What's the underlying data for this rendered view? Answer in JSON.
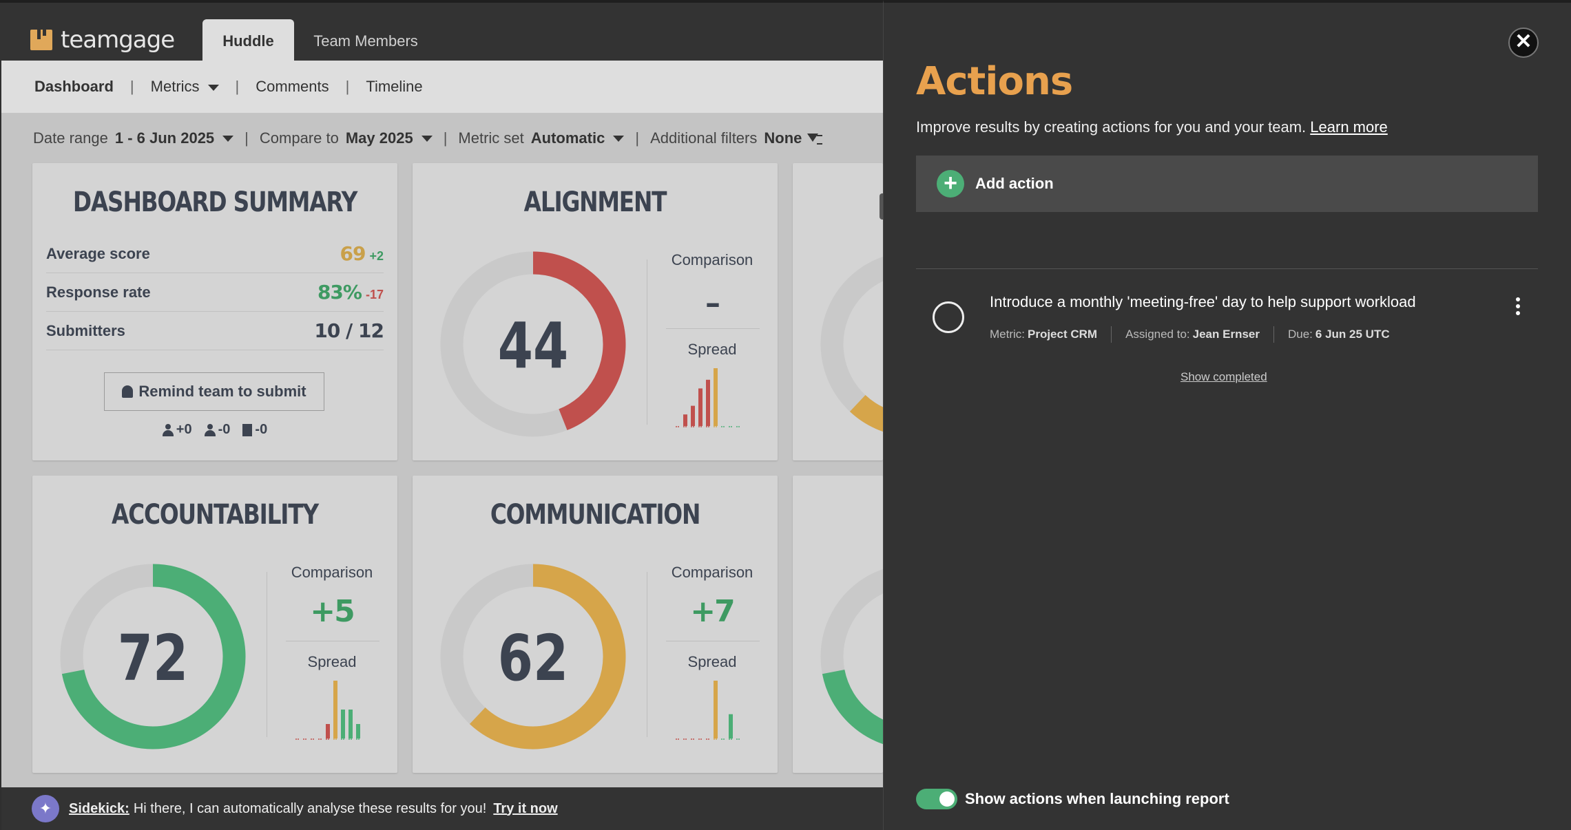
{
  "brand": {
    "name": "teamgage"
  },
  "tabs": [
    {
      "label": "Huddle",
      "active": true
    },
    {
      "label": "Team Members",
      "active": false
    }
  ],
  "subnav": [
    {
      "label": "Dashboard",
      "active": true
    },
    {
      "label": "Metrics",
      "dropdown": true
    },
    {
      "label": "Comments"
    },
    {
      "label": "Timeline"
    }
  ],
  "filters": {
    "date_range_label": "Date range",
    "date_range_value": "1 - 6 Jun 2025",
    "compare_label": "Compare to",
    "compare_value": "May 2025",
    "metric_set_label": "Metric set",
    "metric_set_value": "Automatic",
    "additional_label": "Additional filters",
    "additional_value": "None"
  },
  "summary": {
    "title": "DASHBOARD SUMMARY",
    "rows": [
      {
        "label": "Average score",
        "value": "69",
        "delta": "+2",
        "value_color": "#c9a04a",
        "delta_color": "#3e9a62"
      },
      {
        "label": "Response rate",
        "value": "83%",
        "delta": "-17",
        "value_color": "#3e9a62",
        "delta_color": "#c0504d"
      },
      {
        "label": "Submitters",
        "value": "10 / 12",
        "delta": "",
        "value_color": "#3c4350",
        "delta_color": "#3c4350"
      }
    ],
    "remind_label": "Remind team to submit",
    "icons": {
      "added": "+0",
      "removed": "-0",
      "teams": "-0"
    }
  },
  "metrics": [
    {
      "title": "ALIGNMENT",
      "score": "44",
      "score_fraction": 0.44,
      "color": "#c0504d",
      "comparison_label": "Comparison",
      "comparison_value": "–",
      "comparison_color": "#3c4350",
      "spread_label": "Spread",
      "spread_bars": [
        0,
        0.2,
        0.35,
        0.65,
        0.8,
        1,
        0,
        0,
        0
      ]
    },
    {
      "title": "ACCOUNTABILITY",
      "score": "72",
      "score_fraction": 0.72,
      "color": "#4cae76",
      "comparison_label": "Comparison",
      "comparison_value": "+5",
      "comparison_color": "#3e9a62",
      "spread_label": "Spread",
      "spread_bars": [
        0,
        0,
        0,
        0,
        0.25,
        1,
        0.5,
        0.5,
        0.25
      ]
    },
    {
      "title": "COMMUNICATION",
      "score": "62",
      "score_fraction": 0.62,
      "color": "#d6a54a",
      "comparison_label": "Comparison",
      "comparison_value": "+7",
      "comparison_color": "#3e9a62",
      "spread_label": "Spread",
      "spread_bars": [
        0,
        0,
        0,
        0,
        0,
        1,
        0,
        0.42,
        0
      ]
    }
  ],
  "panel": {
    "title": "Actions",
    "subtitle": "Improve results by creating actions for you and your team.",
    "learn_more": "Learn more",
    "add_action": "Add action",
    "action": {
      "title": "Introduce a monthly 'meeting-free' day to help support workload",
      "metric_label": "Metric:",
      "metric_value": "Project CRM",
      "assigned_label": "Assigned to:",
      "assigned_value": "Jean Ernser",
      "due_label": "Due:",
      "due_value": "6 Jun 25 UTC"
    },
    "show_completed": "Show completed",
    "toggle_label": "Show actions when launching report",
    "toggle_on": true
  },
  "sidekick": {
    "name": "Sidekick:",
    "message": "Hi there, I can automatically analyse these results for you!",
    "cta": "Try it now"
  },
  "colors": {
    "green": "#4cae76",
    "red": "#c0504d",
    "gold": "#d6a54a",
    "accent": "#e8a14e",
    "track": "#c9c9c9"
  }
}
